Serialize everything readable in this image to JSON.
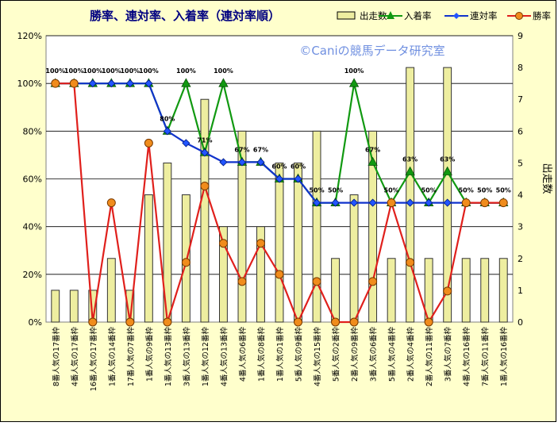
{
  "chart_data": {
    "type": "bar+line",
    "title": "勝率、連対率、入着率（連対率順）",
    "watermark": "©Caniの競馬データ研究室",
    "right_axis_label": "出走数",
    "left_axis": {
      "min": 0,
      "max": 120,
      "step": 20,
      "suffix": "%"
    },
    "right_axis": {
      "min": 0,
      "max": 9,
      "step": 1
    },
    "grid": true,
    "legend_position": "top-right",
    "legend": [
      "出走数",
      "入着率",
      "連対率",
      "勝率"
    ],
    "colors": {
      "bars": "#eeeea0",
      "bar_edge": "#333333",
      "place": "#119911",
      "rentai": "#1133cc",
      "win": "#e0201c",
      "win_marker": "#f08c1c",
      "plot_bg": "#ffffff",
      "frame_bg": "#ffffcc",
      "title": "#000080",
      "watermark": "#6f8fe0"
    },
    "categories": [
      "8番人気の17番枠",
      "4番人気の17番枠",
      "16番人気の17番枠",
      "1番人気の14番枠",
      "17番人気の7番枠",
      "1番人気の9番枠",
      "1番人気の13番枠",
      "3番人気の13番枠",
      "1番人気の12番枠",
      "4番人気の13番枠",
      "4番人気の6番枠",
      "1番人気の8番枠",
      "1番人気の1番枠",
      "5番人気の9番枠",
      "4番人気の15番枠",
      "5番人気の2番枠",
      "2番人気の9番枠",
      "3番人気の6番枠",
      "5番人気の4番枠",
      "2番人気の4番枠",
      "2番人気の11番枠",
      "3番人気の7番枠",
      "4番人気の16番枠",
      "7番人気の11番枠",
      "1番人気の16番枠"
    ],
    "series": [
      {
        "name": "出走数",
        "axis": "right",
        "values": [
          1,
          1,
          1,
          2,
          1,
          4,
          5,
          4,
          7,
          3,
          6,
          3,
          5,
          5,
          6,
          2,
          4,
          6,
          2,
          8,
          2,
          8,
          2,
          2,
          2
        ]
      },
      {
        "name": "入着率",
        "axis": "left",
        "values": [
          100,
          100,
          100,
          100,
          100,
          100,
          80,
          100,
          71,
          100,
          67,
          67,
          60,
          60,
          50,
          50,
          100,
          67,
          50,
          63,
          50,
          63,
          50,
          50,
          50
        ]
      },
      {
        "name": "連対率",
        "axis": "left",
        "values": [
          100,
          100,
          100,
          100,
          100,
          100,
          80,
          75,
          71,
          67,
          67,
          67,
          60,
          60,
          50,
          50,
          50,
          50,
          50,
          50,
          50,
          50,
          50,
          50,
          50
        ]
      },
      {
        "name": "勝率",
        "axis": "left",
        "values": [
          100,
          100,
          0,
          50,
          0,
          75,
          0,
          25,
          57,
          33,
          17,
          33,
          20,
          0,
          17,
          0,
          0,
          17,
          50,
          25,
          0,
          13,
          50,
          50,
          50
        ]
      }
    ],
    "top_labels": [
      "100%",
      "100%",
      "100%",
      "100%",
      "100%",
      "100%",
      "80%",
      "100%",
      "71%",
      "100%",
      "67%",
      "67%",
      "60%",
      "60%",
      "50%",
      "50%",
      "100%",
      "67%",
      "50%",
      "63%",
      "50%",
      "63%",
      "50%",
      "50%",
      "50%"
    ]
  }
}
